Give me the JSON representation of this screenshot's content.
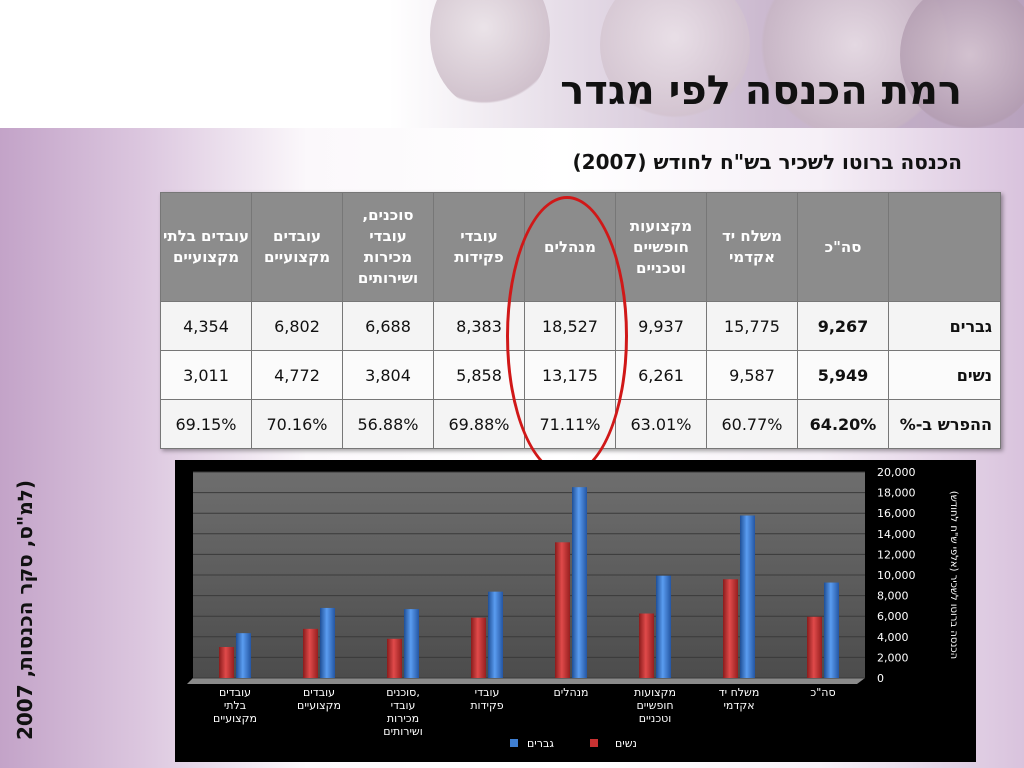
{
  "title": "רמת הכנסה לפי מגדר",
  "subtitle": "הכנסה ברוטו לשכיר בש\"ח לחודש (2007)",
  "source": "(למ\"ס, סקר הכנסות, 2007",
  "table": {
    "headers": [
      "סה\"כ",
      "משלח יד אקדמי",
      "מקצועות חופשיים וטכניים",
      "מנהלים",
      "עובדי פקידות",
      "סוכנים, עובדי מכירות ושירותים",
      "עובדים מקצועיים",
      "עובדים בלתי מקצועיים"
    ],
    "rows": [
      {
        "label": "גברים",
        "values": [
          "9,267",
          "15,775",
          "9,937",
          "18,527",
          "8,383",
          "6,688",
          "6,802",
          "4,354"
        ]
      },
      {
        "label": "נשים",
        "values": [
          "5,949",
          "9,587",
          "6,261",
          "13,175",
          "5,858",
          "3,804",
          "4,772",
          "3,011"
        ]
      },
      {
        "label": "ההפרש ב-%",
        "values": [
          "64.20%",
          "60.77%",
          "63.01%",
          "71.11%",
          "69.88%",
          "56.88%",
          "70.16%",
          "69.15%"
        ]
      }
    ]
  },
  "chart_data": {
    "type": "bar",
    "categories": [
      "סה\"כ",
      "משלח יד אקדמי",
      "מקצועות חופשיים וטכניים",
      "מנהלים",
      "עובדי פקידות",
      "סוכנים, עובדי מכירות ושירותים",
      "עובדים מקצועיים",
      "עובדים בלתי מקצועיים"
    ],
    "series": [
      {
        "name": "גברים",
        "color": "#3f7fd2",
        "values": [
          9267,
          15775,
          9937,
          18527,
          8383,
          6688,
          6802,
          4354
        ]
      },
      {
        "name": "נשים",
        "color": "#c83232",
        "values": [
          5949,
          9587,
          6261,
          13175,
          5858,
          3804,
          4772,
          3011
        ]
      }
    ],
    "ylabel": "הכנסה ברוטו לשכיר (אלפי ש\"ח לחודש)",
    "ylim": [
      0,
      20000
    ],
    "yticks": [
      "0",
      "2,000",
      "4,000",
      "6,000",
      "8,000",
      "10,000",
      "12,000",
      "14,000",
      "16,000",
      "18,000",
      "20,000"
    ],
    "x_direction": "right-to-left",
    "y_axis_side": "right",
    "grid": true,
    "legend": "bottom"
  }
}
